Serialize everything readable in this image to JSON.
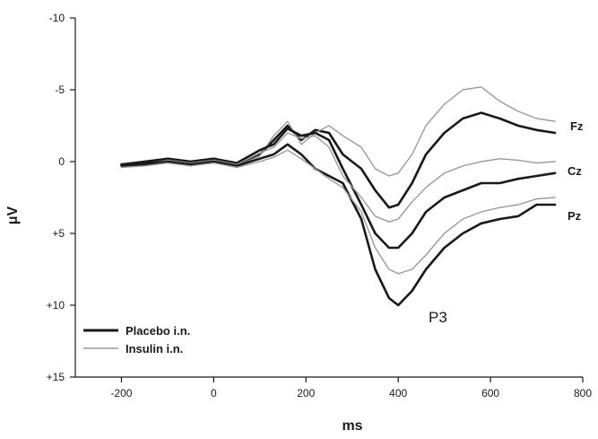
{
  "chart_data": {
    "type": "line",
    "xlabel": "ms",
    "ylabel": "μV",
    "xlim": [
      -300,
      800
    ],
    "ylim": [
      -10,
      15
    ],
    "y_inverted": true,
    "x_ticks": [
      "-200",
      "0",
      "200",
      "400",
      "600",
      "800"
    ],
    "y_ticks": [
      "-10",
      "-5",
      "0",
      "+5",
      "+10",
      "+15"
    ],
    "grid": false,
    "legend_position": "bottom-left",
    "legend": [
      "Placebo i.n.",
      "Insulin i.n."
    ],
    "peak_label": "P3",
    "electrode_labels": [
      "Fz",
      "Cz",
      "Pz"
    ],
    "colors": {
      "placebo": "#1a1a1a",
      "insulin": "#9a9a9a"
    },
    "series": [
      {
        "name": "Placebo i.n.",
        "electrode": "Fz",
        "x": [
          -200,
          -150,
          -100,
          -50,
          0,
          50,
          100,
          130,
          160,
          190,
          220,
          250,
          280,
          320,
          350,
          380,
          400,
          430,
          460,
          500,
          540,
          580,
          620,
          660,
          700,
          740
        ],
        "y": [
          0.2,
          0,
          -0.2,
          0,
          -0.2,
          0.2,
          -0.5,
          -1.5,
          -2.5,
          -1.5,
          -2.2,
          -2.0,
          -0.5,
          0.5,
          2.0,
          3.2,
          3.0,
          1.5,
          -0.5,
          -2.0,
          -3.0,
          -3.4,
          -3.0,
          -2.5,
          -2.2,
          -2.0
        ]
      },
      {
        "name": "Insulin i.n.",
        "electrode": "Fz",
        "x": [
          -200,
          -150,
          -100,
          -50,
          0,
          50,
          100,
          130,
          160,
          190,
          220,
          250,
          280,
          320,
          350,
          380,
          400,
          430,
          460,
          500,
          540,
          580,
          620,
          660,
          700,
          740
        ],
        "y": [
          0.3,
          0.1,
          -0.1,
          0.1,
          -0.1,
          0.3,
          -0.4,
          -1.8,
          -2.8,
          -1.2,
          -2.0,
          -2.5,
          -1.8,
          -1.0,
          0.5,
          1.0,
          0.8,
          -0.5,
          -2.5,
          -4.0,
          -5.0,
          -5.2,
          -4.2,
          -3.5,
          -3.0,
          -2.8
        ]
      },
      {
        "name": "Placebo i.n.",
        "electrode": "Cz",
        "x": [
          -200,
          -150,
          -100,
          -50,
          0,
          50,
          100,
          130,
          160,
          190,
          220,
          250,
          280,
          320,
          350,
          380,
          400,
          430,
          460,
          500,
          540,
          580,
          620,
          660,
          700,
          740
        ],
        "y": [
          0.2,
          0.1,
          -0.2,
          0,
          -0.2,
          0.1,
          -0.8,
          -1.2,
          -2.3,
          -1.8,
          -2.0,
          -1.5,
          0.5,
          3.0,
          5.0,
          6.0,
          6.0,
          5.0,
          3.5,
          2.5,
          2.0,
          1.5,
          1.5,
          1.2,
          1.0,
          0.8
        ]
      },
      {
        "name": "Insulin i.n.",
        "electrode": "Cz",
        "x": [
          -200,
          -150,
          -100,
          -50,
          0,
          50,
          100,
          130,
          160,
          190,
          220,
          250,
          280,
          320,
          350,
          380,
          400,
          430,
          460,
          500,
          540,
          580,
          620,
          660,
          700,
          740
        ],
        "y": [
          0.3,
          0.2,
          -0.1,
          0.1,
          -0.1,
          0.2,
          -0.6,
          -1.0,
          -2.0,
          -1.6,
          -1.8,
          -1.0,
          1.0,
          2.5,
          3.8,
          4.2,
          4.0,
          2.8,
          1.8,
          0.8,
          0.3,
          0,
          -0.2,
          -0.1,
          0.1,
          0
        ]
      },
      {
        "name": "Placebo i.n.",
        "electrode": "Pz",
        "x": [
          -200,
          -150,
          -100,
          -50,
          0,
          50,
          100,
          130,
          160,
          190,
          220,
          250,
          280,
          320,
          350,
          380,
          400,
          430,
          460,
          500,
          540,
          580,
          620,
          660,
          700,
          740
        ],
        "y": [
          0.3,
          0.2,
          0,
          0.2,
          0,
          0.3,
          -0.2,
          -0.5,
          -1.2,
          -0.5,
          0.5,
          1.0,
          1.5,
          4.0,
          7.5,
          9.5,
          10.0,
          9.0,
          7.5,
          6.0,
          5.0,
          4.3,
          4.0,
          3.8,
          3.0,
          3.0
        ]
      },
      {
        "name": "Insulin i.n.",
        "electrode": "Pz",
        "x": [
          -200,
          -150,
          -100,
          -50,
          0,
          50,
          100,
          130,
          160,
          190,
          220,
          250,
          280,
          320,
          350,
          380,
          400,
          430,
          460,
          500,
          540,
          580,
          620,
          660,
          700,
          740
        ],
        "y": [
          0.4,
          0.3,
          0.1,
          0.3,
          0.1,
          0.4,
          0,
          -0.3,
          -0.8,
          -0.2,
          0.5,
          1.2,
          1.8,
          3.5,
          6.0,
          7.5,
          7.8,
          7.5,
          6.5,
          5.0,
          4.0,
          3.5,
          3.2,
          3.0,
          2.6,
          2.5
        ]
      }
    ]
  }
}
